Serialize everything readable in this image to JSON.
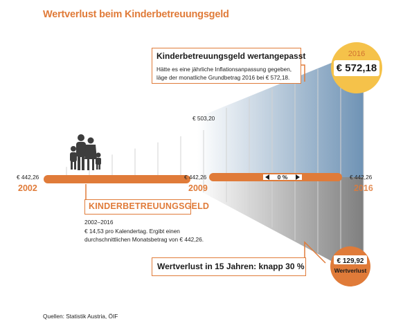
{
  "title": "Wertverlust beim Kinderbetreuungsgeld",
  "inflation_box": {
    "title": "Kinderbetreuungsgeld wertangepasst",
    "text": "Hätte es eine jährliche Inflationsanpassung gegeben, läge der monatliche Grundbetrag 2016 bei € 572,18."
  },
  "kbg_box": {
    "title": "KINDERBETREUUNGSGELD",
    "period": "2002–2016",
    "text": "€ 14,53 pro Kalendertag. Ergibt einen durchschnittlichen Monatsbetrag von € 442,26."
  },
  "loss_box": {
    "title": "Wertverlust in 15 Jahren: knapp 30 %"
  },
  "labels": {
    "amount_2002": "€ 442,26",
    "amount_2009": "€ 442,26",
    "amount_2016": "€ 442,26",
    "amount_2009_adjusted": "€ 503,20",
    "year_2002": "2002",
    "year_2009": "2009",
    "year_2016": "2016",
    "change_pct": "0 %",
    "circle_top_year": "2016",
    "circle_top_value": "€ 572,18",
    "circle_bottom_value": "€ 129,92",
    "circle_bottom_label": "Wertverlust"
  },
  "source": "Quellen: Statistik Austria, ÖIF",
  "colors": {
    "accent": "#e07b39",
    "gold": "#f5c24a",
    "blue": "#7c9fbd",
    "grey": "#8d8d8d"
  },
  "chart_data": {
    "type": "area",
    "title": "Wertverlust beim Kinderbetreuungsgeld",
    "x": [
      2002,
      2009,
      2016
    ],
    "series": [
      {
        "values": [
          442.26,
          442.26,
          442.26
        ]
      },
      {
        "values": [
          442.26,
          503.2,
          572.18
        ]
      }
    ],
    "loss_2016": 129.92,
    "loss_percent_label": "knapp 30 %"
  }
}
